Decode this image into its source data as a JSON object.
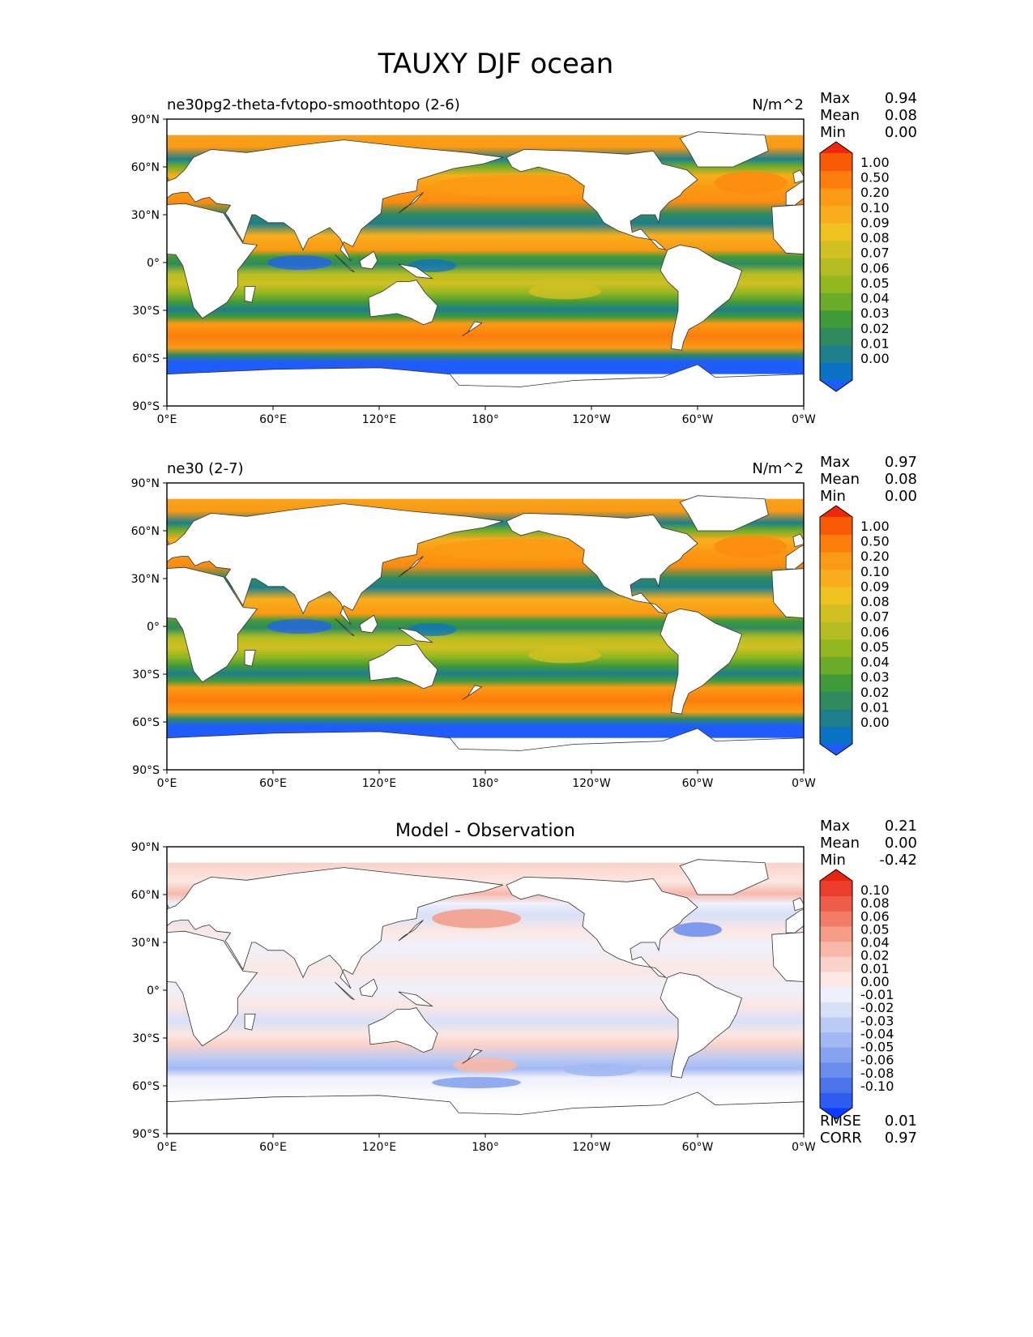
{
  "title": "TAUXY DJF ocean",
  "x_ticks": [
    "0°E",
    "60°E",
    "120°E",
    "180°",
    "120°W",
    "60°W",
    "0°W"
  ],
  "y_ticks": [
    "90°N",
    "60°N",
    "30°N",
    "0°",
    "30°S",
    "60°S",
    "90°S"
  ],
  "stat_labels": {
    "max": "Max",
    "mean": "Mean",
    "min": "Min",
    "rmse": "RMSE",
    "corr": "CORR"
  },
  "colors": {
    "land": "#ffffff",
    "coast": "#333333",
    "ice": "#ffffff"
  },
  "panels": [
    {
      "left_title": "ne30pg2-theta-fvtopo-smoothtopo (2-6)",
      "center_title": "",
      "units": "N/m^2",
      "stats": {
        "max": "0.94",
        "mean": "0.08",
        "min": "0.00"
      }
    },
    {
      "left_title": "ne30 (2-7)",
      "center_title": "",
      "units": "N/m^2",
      "stats": {
        "max": "0.97",
        "mean": "0.08",
        "min": "0.00"
      }
    },
    {
      "left_title": "",
      "center_title": "Model - Observation",
      "units": "",
      "stats": {
        "max": "0.21",
        "mean": "0.00",
        "min": "-0.42",
        "rmse": "0.01",
        "corr": "0.97"
      }
    }
  ],
  "colorbar_model": {
    "ticks": [
      "0.00",
      "0.01",
      "0.02",
      "0.03",
      "0.04",
      "0.05",
      "0.06",
      "0.07",
      "0.08",
      "0.09",
      "0.10",
      "0.20",
      "0.50",
      "1.00"
    ],
    "colors": [
      "#1f5cff",
      "#0a72c4",
      "#1d7f8c",
      "#2f8b5e",
      "#3f9a3a",
      "#6aac2a",
      "#93b81f",
      "#b3bd22",
      "#d2c022",
      "#f0c21f",
      "#f8ae1c",
      "#fb9a14",
      "#fc7d0c",
      "#f85a06",
      "#f2260a"
    ]
  },
  "colorbar_diff": {
    "ticks": [
      "-0.10",
      "-0.08",
      "-0.06",
      "-0.05",
      "-0.04",
      "-0.03",
      "-0.02",
      "-0.01",
      "0.00",
      "0.01",
      "0.02",
      "0.04",
      "0.05",
      "0.06",
      "0.08",
      "0.10"
    ],
    "colors": [
      "#0b3bff",
      "#2e5cf2",
      "#4c74ea",
      "#6a8ced",
      "#86a3ef",
      "#a2b8f2",
      "#bccbf5",
      "#d8e0f8",
      "#eef0fb",
      "#fbe7e3",
      "#fbd2c9",
      "#f8b8a9",
      "#f59b86",
      "#f27d66",
      "#ee5d49",
      "#ea3d2c",
      "#e8240f"
    ]
  },
  "chart_data": [
    {
      "type": "heatmap",
      "title": "ne30pg2-theta-fvtopo-smoothtopo (2-6)",
      "variable": "TAUXY DJF ocean",
      "units": "N/m^2",
      "x_range": [
        0,
        360
      ],
      "y_range": [
        -90,
        90
      ],
      "xlabel": "",
      "ylabel": "",
      "levels": [
        0.0,
        0.01,
        0.02,
        0.03,
        0.04,
        0.05,
        0.06,
        0.07,
        0.08,
        0.09,
        0.1,
        0.2,
        0.5,
        1.0
      ],
      "summary": {
        "max": 0.94,
        "mean": 0.08,
        "min": 0.0
      },
      "zonal_bands_approx": [
        {
          "lat_from": 50,
          "lat_to": 62,
          "value": 0.2
        },
        {
          "lat_from": 40,
          "lat_to": 50,
          "value": 0.1
        },
        {
          "lat_from": 30,
          "lat_to": 40,
          "value": 0.03
        },
        {
          "lat_from": 10,
          "lat_to": 30,
          "value": 0.1
        },
        {
          "lat_from": 0,
          "lat_to": 10,
          "value": 0.04
        },
        {
          "lat_from": -15,
          "lat_to": 0,
          "value": 0.06
        },
        {
          "lat_from": -30,
          "lat_to": -15,
          "value": 0.08
        },
        {
          "lat_from": -40,
          "lat_to": -30,
          "value": 0.02
        },
        {
          "lat_from": -60,
          "lat_to": -40,
          "value": 0.2
        },
        {
          "lat_from": -68,
          "lat_to": -60,
          "value": 0.02
        }
      ]
    },
    {
      "type": "heatmap",
      "title": "ne30 (2-7)",
      "variable": "TAUXY DJF ocean",
      "units": "N/m^2",
      "x_range": [
        0,
        360
      ],
      "y_range": [
        -90,
        90
      ],
      "levels": [
        0.0,
        0.01,
        0.02,
        0.03,
        0.04,
        0.05,
        0.06,
        0.07,
        0.08,
        0.09,
        0.1,
        0.2,
        0.5,
        1.0
      ],
      "summary": {
        "max": 0.97,
        "mean": 0.08,
        "min": 0.0
      },
      "zonal_bands_approx": [
        {
          "lat_from": 50,
          "lat_to": 62,
          "value": 0.2
        },
        {
          "lat_from": 40,
          "lat_to": 50,
          "value": 0.1
        },
        {
          "lat_from": 30,
          "lat_to": 40,
          "value": 0.03
        },
        {
          "lat_from": 10,
          "lat_to": 30,
          "value": 0.1
        },
        {
          "lat_from": 0,
          "lat_to": 10,
          "value": 0.04
        },
        {
          "lat_from": -15,
          "lat_to": 0,
          "value": 0.06
        },
        {
          "lat_from": -30,
          "lat_to": -15,
          "value": 0.08
        },
        {
          "lat_from": -40,
          "lat_to": -30,
          "value": 0.02
        },
        {
          "lat_from": -60,
          "lat_to": -40,
          "value": 0.2
        },
        {
          "lat_from": -68,
          "lat_to": -60,
          "value": 0.02
        }
      ]
    },
    {
      "type": "heatmap",
      "title": "Model - Observation",
      "variable": "TAUXY DJF ocean",
      "units": "N/m^2",
      "x_range": [
        0,
        360
      ],
      "y_range": [
        -90,
        90
      ],
      "levels": [
        -0.1,
        -0.08,
        -0.06,
        -0.05,
        -0.04,
        -0.03,
        -0.02,
        -0.01,
        0.0,
        0.01,
        0.02,
        0.04,
        0.05,
        0.06,
        0.08,
        0.1
      ],
      "summary": {
        "max": 0.21,
        "mean": 0.0,
        "min": -0.42,
        "rmse": 0.01,
        "corr": 0.97
      },
      "zonal_bands_approx": [
        {
          "lat_from": 50,
          "lat_to": 62,
          "value": 0.01
        },
        {
          "lat_from": 40,
          "lat_to": 50,
          "value": 0.04
        },
        {
          "lat_from": 30,
          "lat_to": 40,
          "value": -0.02
        },
        {
          "lat_from": 10,
          "lat_to": 30,
          "value": 0.01
        },
        {
          "lat_from": 0,
          "lat_to": 10,
          "value": 0.0
        },
        {
          "lat_from": -15,
          "lat_to": 0,
          "value": -0.01
        },
        {
          "lat_from": -30,
          "lat_to": -15,
          "value": 0.01
        },
        {
          "lat_from": -40,
          "lat_to": -30,
          "value": -0.01
        },
        {
          "lat_from": -50,
          "lat_to": -40,
          "value": 0.02
        },
        {
          "lat_from": -60,
          "lat_to": -50,
          "value": -0.03
        },
        {
          "lat_from": -68,
          "lat_to": -60,
          "value": 0.0
        }
      ]
    }
  ]
}
